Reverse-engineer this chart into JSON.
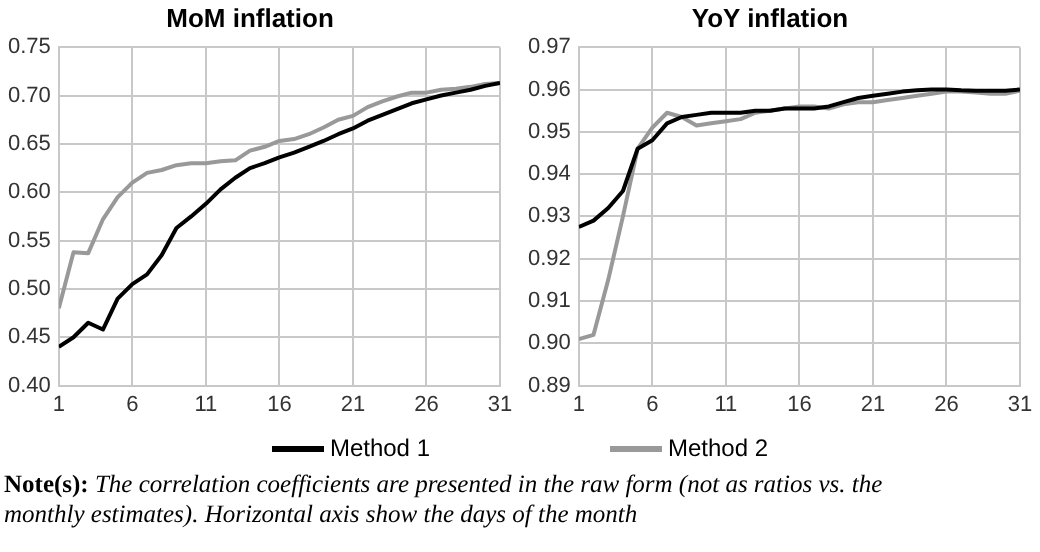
{
  "chart_data": [
    {
      "type": "line",
      "title": "MoM inflation",
      "x": [
        1,
        2,
        3,
        4,
        5,
        6,
        7,
        8,
        9,
        10,
        11,
        12,
        13,
        14,
        15,
        16,
        17,
        18,
        19,
        20,
        21,
        22,
        23,
        24,
        25,
        26,
        27,
        28,
        29,
        30,
        31
      ],
      "xlim": [
        1,
        31
      ],
      "xticks": [
        1,
        6,
        11,
        16,
        21,
        26,
        31
      ],
      "ylim": [
        0.4,
        0.75
      ],
      "yticks": [
        {
          "value": 0.4,
          "label": "0.40"
        },
        {
          "value": 0.45,
          "label": "0.45"
        },
        {
          "value": 0.5,
          "label": "0.50"
        },
        {
          "value": 0.55,
          "label": "0.55"
        },
        {
          "value": 0.6,
          "label": "0.60"
        },
        {
          "value": 0.65,
          "label": "0.65"
        },
        {
          "value": 0.7,
          "label": "0.70"
        },
        {
          "value": 0.75,
          "label": "0.75"
        }
      ],
      "grid": true,
      "legend": "bottom",
      "marker": "none",
      "line_style": "solid",
      "series": [
        {
          "name": "Method 1",
          "color": "#000000",
          "values": [
            0.44,
            0.45,
            0.465,
            0.458,
            0.49,
            0.505,
            0.515,
            0.535,
            0.563,
            0.575,
            0.588,
            0.603,
            0.615,
            0.625,
            0.63,
            0.636,
            0.641,
            0.647,
            0.653,
            0.66,
            0.666,
            0.674,
            0.68,
            0.686,
            0.692,
            0.696,
            0.7,
            0.703,
            0.706,
            0.71,
            0.713
          ]
        },
        {
          "name": "Method 2",
          "color": "#999999",
          "values": [
            0.48,
            0.538,
            0.537,
            0.572,
            0.595,
            0.61,
            0.62,
            0.623,
            0.628,
            0.63,
            0.63,
            0.632,
            0.633,
            0.643,
            0.647,
            0.653,
            0.655,
            0.66,
            0.667,
            0.675,
            0.679,
            0.688,
            0.694,
            0.699,
            0.703,
            0.703,
            0.706,
            0.707,
            0.709,
            0.712,
            0.713
          ]
        }
      ],
      "annotations": [
        "Note(s):",
        "The correlation coefficients are presented in the raw form (not as ratios vs. the monthly estimates). Horizontal axis show the days of the month"
      ]
    },
    {
      "type": "line",
      "title": "YoY inflation",
      "x": [
        1,
        2,
        3,
        4,
        5,
        6,
        7,
        8,
        9,
        10,
        11,
        12,
        13,
        14,
        15,
        16,
        17,
        18,
        19,
        20,
        21,
        22,
        23,
        24,
        25,
        26,
        27,
        28,
        29,
        30,
        31
      ],
      "xlim": [
        1,
        31
      ],
      "xticks": [
        1,
        6,
        11,
        16,
        21,
        26,
        31
      ],
      "ylim": [
        0.89,
        0.97
      ],
      "yticks": [
        {
          "value": 0.89,
          "label": "0.89"
        },
        {
          "value": 0.9,
          "label": "0.90"
        },
        {
          "value": 0.91,
          "label": "0.91"
        },
        {
          "value": 0.92,
          "label": "0.92"
        },
        {
          "value": 0.93,
          "label": "0.93"
        },
        {
          "value": 0.94,
          "label": "0.94"
        },
        {
          "value": 0.95,
          "label": "0.95"
        },
        {
          "value": 0.96,
          "label": "0.96"
        },
        {
          "value": 0.97,
          "label": "0.97"
        }
      ],
      "grid": true,
      "marker": "none",
      "line_style": "solid",
      "series": [
        {
          "color": "#000000",
          "values": [
            0.9275,
            0.929,
            0.932,
            0.936,
            0.946,
            0.948,
            0.952,
            0.9535,
            0.954,
            0.9545,
            0.9545,
            0.9545,
            0.955,
            0.955,
            0.9555,
            0.9555,
            0.9555,
            0.956,
            0.957,
            0.958,
            0.9585,
            0.959,
            0.9595,
            0.9598,
            0.96,
            0.96,
            0.9598,
            0.9597,
            0.9597,
            0.9597,
            0.96
          ]
        },
        {
          "color": "#999999",
          "values": [
            0.901,
            0.902,
            0.915,
            0.93,
            0.946,
            0.951,
            0.9545,
            0.9535,
            0.9515,
            0.952,
            0.9525,
            0.953,
            0.9545,
            0.955,
            0.9555,
            0.956,
            0.956,
            0.9555,
            0.9565,
            0.957,
            0.957,
            0.9575,
            0.958,
            0.9585,
            0.959,
            0.9595,
            0.9595,
            0.9593,
            0.959,
            0.959,
            0.9597
          ]
        }
      ]
    }
  ]
}
